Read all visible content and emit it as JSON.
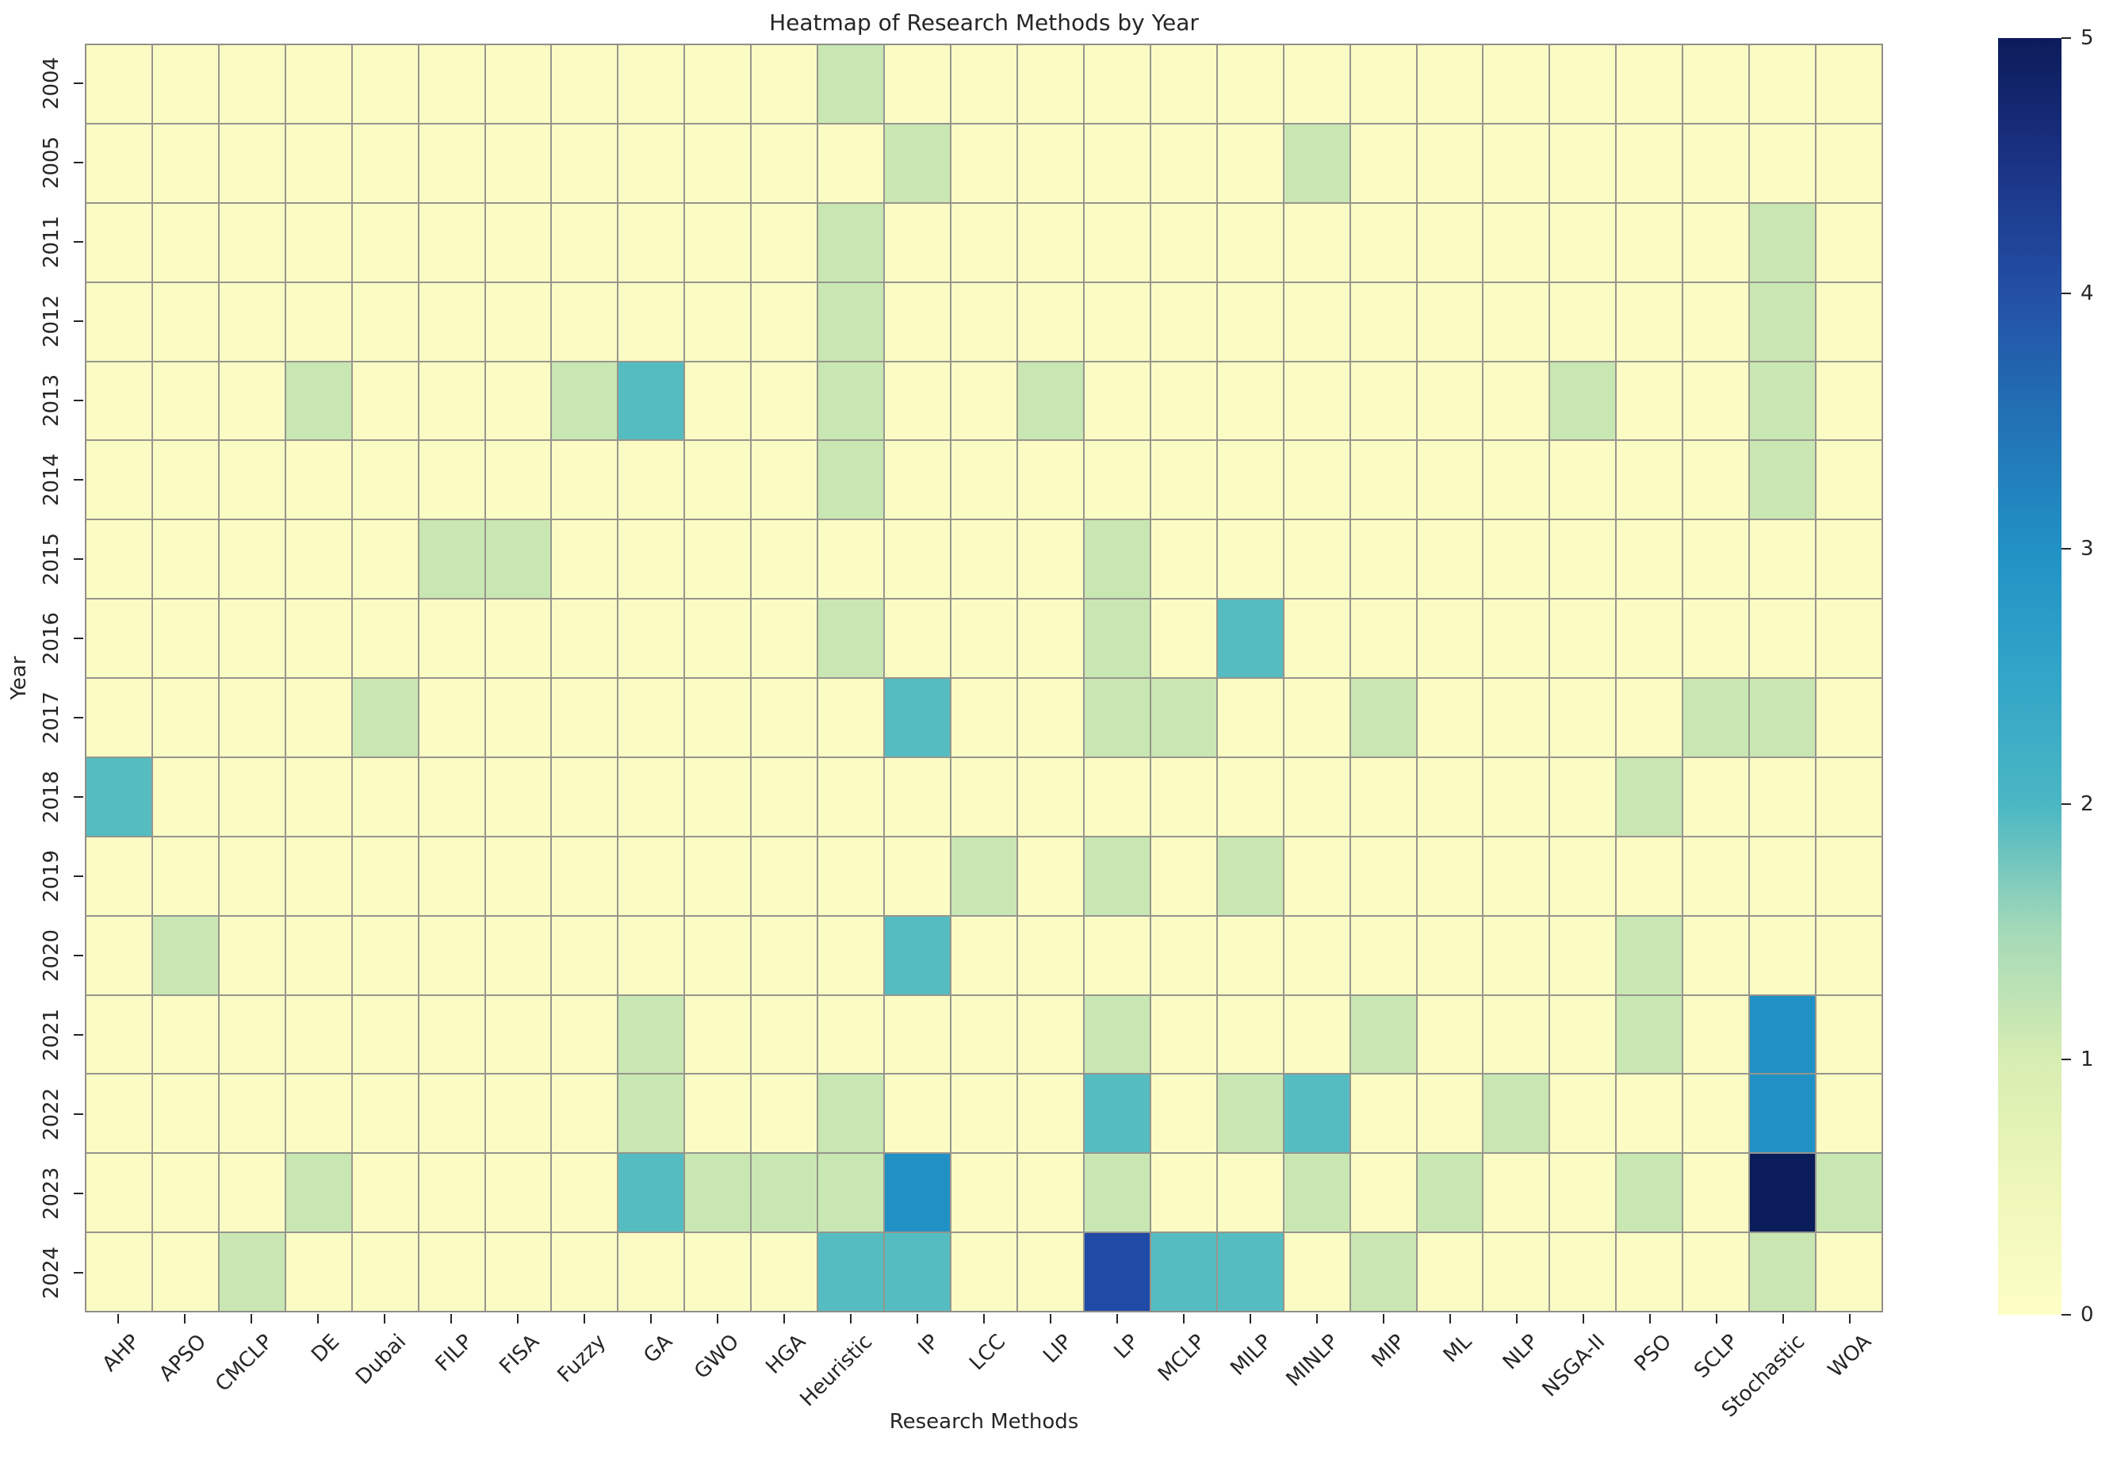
{
  "title": "Heatmap of Research Methods by Year",
  "chart_data": {
    "type": "heatmap",
    "title": "Heatmap of Research Methods by Year",
    "xlabel": "Research Methods",
    "ylabel": "Year",
    "x_categories": [
      "AHP",
      "APSO",
      "CMCLP",
      "DE",
      "Dubai",
      "FILP",
      "FISA",
      "Fuzzy",
      "GA",
      "GWO",
      "HGA",
      "Heuristic",
      "IP",
      "LCC",
      "LIP",
      "LP",
      "MCLP",
      "MILP",
      "MINLP",
      "MIP",
      "ML",
      "NLP",
      "NSGA-II",
      "PSO",
      "SCLP",
      "Stochastic",
      "WOA"
    ],
    "y_categories": [
      "2004",
      "2005",
      "2011",
      "2012",
      "2013",
      "2014",
      "2015",
      "2016",
      "2017",
      "2018",
      "2019",
      "2020",
      "2021",
      "2022",
      "2023",
      "2024"
    ],
    "vmin": 0,
    "vmax": 5,
    "colorbar_ticks": [
      "0",
      "1",
      "2",
      "3",
      "4",
      "5"
    ],
    "colormap": "YlGnBu",
    "value_colors": {
      "0": "#fbfcc4",
      "1": "#c9e7b2",
      "2": "#55bdc1",
      "3": "#2191c5",
      "4": "#1f4aa5",
      "5": "#0a1d5a"
    },
    "grid_line_color": "#95958e",
    "matrix": [
      [
        0,
        0,
        0,
        0,
        0,
        0,
        0,
        0,
        0,
        0,
        0,
        1,
        0,
        0,
        0,
        0,
        0,
        0,
        0,
        0,
        0,
        0,
        0,
        0,
        0,
        0,
        0
      ],
      [
        0,
        0,
        0,
        0,
        0,
        0,
        0,
        0,
        0,
        0,
        0,
        0,
        1,
        0,
        0,
        0,
        0,
        0,
        1,
        0,
        0,
        0,
        0,
        0,
        0,
        0,
        0
      ],
      [
        0,
        0,
        0,
        0,
        0,
        0,
        0,
        0,
        0,
        0,
        0,
        1,
        0,
        0,
        0,
        0,
        0,
        0,
        0,
        0,
        0,
        0,
        0,
        0,
        0,
        1,
        0
      ],
      [
        0,
        0,
        0,
        0,
        0,
        0,
        0,
        0,
        0,
        0,
        0,
        1,
        0,
        0,
        0,
        0,
        0,
        0,
        0,
        0,
        0,
        0,
        0,
        0,
        0,
        1,
        0
      ],
      [
        0,
        0,
        0,
        1,
        0,
        0,
        0,
        1,
        2,
        0,
        0,
        1,
        0,
        0,
        1,
        0,
        0,
        0,
        0,
        0,
        0,
        0,
        1,
        0,
        0,
        1,
        0
      ],
      [
        0,
        0,
        0,
        0,
        0,
        0,
        0,
        0,
        0,
        0,
        0,
        1,
        0,
        0,
        0,
        0,
        0,
        0,
        0,
        0,
        0,
        0,
        0,
        0,
        0,
        1,
        0
      ],
      [
        0,
        0,
        0,
        0,
        0,
        1,
        1,
        0,
        0,
        0,
        0,
        0,
        0,
        0,
        0,
        1,
        0,
        0,
        0,
        0,
        0,
        0,
        0,
        0,
        0,
        0,
        0
      ],
      [
        0,
        0,
        0,
        0,
        0,
        0,
        0,
        0,
        0,
        0,
        0,
        1,
        0,
        0,
        0,
        1,
        0,
        2,
        0,
        0,
        0,
        0,
        0,
        0,
        0,
        0,
        0
      ],
      [
        0,
        0,
        0,
        0,
        1,
        0,
        0,
        0,
        0,
        0,
        0,
        0,
        2,
        0,
        0,
        1,
        1,
        0,
        0,
        1,
        0,
        0,
        0,
        0,
        1,
        1,
        0
      ],
      [
        2,
        0,
        0,
        0,
        0,
        0,
        0,
        0,
        0,
        0,
        0,
        0,
        0,
        0,
        0,
        0,
        0,
        0,
        0,
        0,
        0,
        0,
        0,
        1,
        0,
        0,
        0
      ],
      [
        0,
        0,
        0,
        0,
        0,
        0,
        0,
        0,
        0,
        0,
        0,
        0,
        0,
        1,
        0,
        1,
        0,
        1,
        0,
        0,
        0,
        0,
        0,
        0,
        0,
        0,
        0
      ],
      [
        0,
        1,
        0,
        0,
        0,
        0,
        0,
        0,
        0,
        0,
        0,
        0,
        2,
        0,
        0,
        0,
        0,
        0,
        0,
        0,
        0,
        0,
        0,
        1,
        0,
        0,
        0
      ],
      [
        0,
        0,
        0,
        0,
        0,
        0,
        0,
        0,
        1,
        0,
        0,
        0,
        0,
        0,
        0,
        1,
        0,
        0,
        0,
        1,
        0,
        0,
        0,
        1,
        0,
        3,
        0
      ],
      [
        0,
        0,
        0,
        0,
        0,
        0,
        0,
        0,
        1,
        0,
        0,
        1,
        0,
        0,
        0,
        2,
        0,
        1,
        2,
        0,
        0,
        1,
        0,
        0,
        0,
        3,
        0
      ],
      [
        0,
        0,
        0,
        1,
        0,
        0,
        0,
        0,
        2,
        1,
        1,
        1,
        3,
        0,
        0,
        1,
        0,
        0,
        1,
        0,
        1,
        0,
        0,
        1,
        0,
        5,
        1
      ],
      [
        0,
        0,
        1,
        0,
        0,
        0,
        0,
        0,
        0,
        0,
        0,
        2,
        2,
        0,
        0,
        4,
        2,
        2,
        0,
        1,
        0,
        0,
        0,
        0,
        0,
        1,
        0
      ]
    ]
  }
}
